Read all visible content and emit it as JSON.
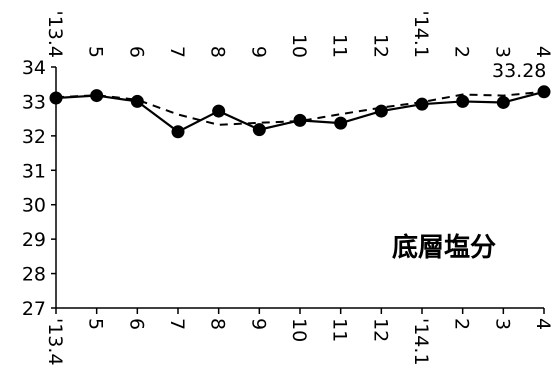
{
  "chart_data": {
    "type": "line",
    "title": "底層塩分",
    "xlabel": "",
    "ylabel": "",
    "categories": [
      "'13.4",
      "5",
      "6",
      "7",
      "8",
      "9",
      "10",
      "11",
      "12",
      "'14.1",
      "2",
      "3",
      "4"
    ],
    "ylim": [
      27,
      34
    ],
    "yticks": [
      "27",
      "28",
      "29",
      "30",
      "31",
      "32",
      "33",
      "34"
    ],
    "series": [
      {
        "values": [
          33.1,
          33.17,
          33.0,
          32.12,
          32.72,
          32.18,
          32.45,
          32.37,
          32.72,
          32.92,
          33.0,
          32.97,
          33.28
        ]
      },
      {
        "values": [
          33.12,
          33.18,
          33.05,
          32.62,
          32.32,
          32.38,
          32.43,
          32.63,
          32.82,
          32.98,
          33.2,
          33.17,
          33.28
        ]
      }
    ],
    "last_value_label": "33.28",
    "grid": false
  }
}
